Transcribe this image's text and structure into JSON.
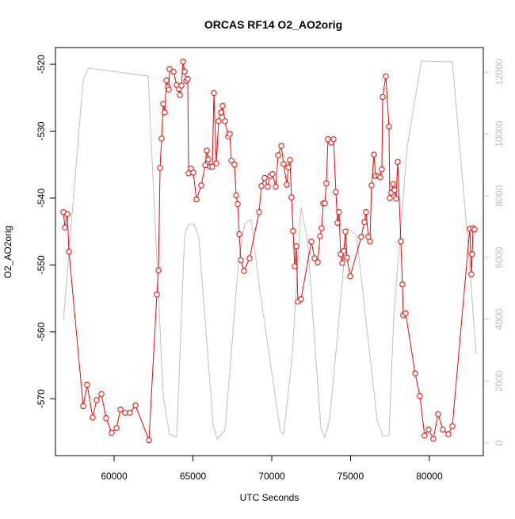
{
  "chart_data": {
    "type": "line",
    "title": "ORCAS RF14 O2_AO2orig",
    "x_label": "UTC Seconds",
    "y_label": "O2_AO2orig",
    "xlim": [
      56280,
      83420
    ],
    "xticks": [
      60000,
      65000,
      70000,
      75000,
      80000
    ],
    "ylim": [
      -578.5,
      -517.5
    ],
    "yticks": [
      -570,
      -560,
      -550,
      -540,
      -530,
      -520
    ],
    "y2lim": [
      -410,
      12795
    ],
    "y2ticks": [
      0,
      2000,
      4000,
      6000,
      8000,
      10000,
      12000
    ],
    "series": [
      {
        "color": "#ff0000",
        "markers": true,
        "x": [
          56784,
          56884,
          57035,
          57136,
          58040,
          58291,
          58643,
          58894,
          59196,
          59497,
          59849,
          60151,
          60402,
          60704,
          61005,
          61357,
          62211,
          62714,
          62814,
          62915,
          63015,
          63116,
          63216,
          63317,
          63417,
          63467,
          63518,
          63769,
          63970,
          64121,
          64171,
          64271,
          64372,
          64472,
          64573,
          64673,
          64724,
          64874,
          65025,
          65226,
          65528,
          65779,
          65879,
          65980,
          66080,
          66231,
          66332,
          66482,
          66633,
          66784,
          66884,
          67035,
          67236,
          67337,
          67437,
          67638,
          67739,
          67839,
          67940,
          68040,
          68241,
          68593,
          69196,
          69347,
          69548,
          69749,
          69900,
          70050,
          70251,
          70402,
          70603,
          70754,
          70955,
          71055,
          71156,
          71256,
          71357,
          71457,
          71558,
          71658,
          71859,
          72513,
          72714,
          72915,
          73065,
          73166,
          73266,
          73367,
          73467,
          73568,
          73769,
          73920,
          74070,
          74171,
          74271,
          74372,
          74472,
          74573,
          74673,
          74774,
          74975,
          75678,
          75879,
          75980,
          76131,
          76231,
          76332,
          76482,
          76583,
          76784,
          76884,
          76985,
          77035,
          77236,
          77437,
          77487,
          77588,
          77688,
          77789,
          77889,
          77990,
          78191,
          78291,
          78342,
          78492,
          79095,
          79397,
          79698,
          79950,
          80251,
          80553,
          80854,
          81206,
          81457,
          82563,
          82663,
          82714,
          82764,
          82864
        ],
        "values": [
          -542.1,
          -544.4,
          -542.4,
          -548.0,
          -571.1,
          -567.9,
          -572.8,
          -570.2,
          -569.3,
          -572.9,
          -575.1,
          -574.4,
          -571.6,
          -572.1,
          -572.1,
          -571.0,
          -576.2,
          -554.4,
          -550.8,
          -535.5,
          -531.1,
          -525.9,
          -527.2,
          -522.4,
          -523.4,
          -523.8,
          -520.7,
          -521.1,
          -523.1,
          -523.7,
          -524.6,
          -523.2,
          -519.6,
          -521.1,
          -522.5,
          -522.2,
          -536.3,
          -535.6,
          -536.2,
          -540.2,
          -538.1,
          -535.1,
          -532.9,
          -534.2,
          -535.3,
          -535.3,
          -524.3,
          -534.8,
          -528.5,
          -527.2,
          -526.2,
          -528.5,
          -530.8,
          -530.4,
          -534.4,
          -535.0,
          -539.6,
          -540.9,
          -545.4,
          -549.3,
          -550.9,
          -549.0,
          -542.1,
          -538.2,
          -537.0,
          -538.3,
          -536.7,
          -536.4,
          -538.3,
          -533.6,
          -532.2,
          -534.9,
          -538.0,
          -535.4,
          -534.3,
          -539.9,
          -544.9,
          -550.2,
          -547.2,
          -555.5,
          -555.1,
          -546.5,
          -549.0,
          -549.6,
          -545.7,
          -544.5,
          -540.8,
          -540.8,
          -537.8,
          -531.2,
          -531.7,
          -531.2,
          -539.1,
          -543.7,
          -542.1,
          -548.4,
          -549.7,
          -547.9,
          -545.0,
          -548.9,
          -551.7,
          -545.8,
          -543.6,
          -542.1,
          -545.8,
          -546.5,
          -538.1,
          -533.5,
          -536.7,
          -536.7,
          -536.9,
          -535.7,
          -524.9,
          -521.8,
          -529.3,
          -540.0,
          -539.2,
          -537.9,
          -538.8,
          -540.1,
          -534.6,
          -546.5,
          -552.9,
          -557.5,
          -557.2,
          -566.2,
          -569.6,
          -575.5,
          -574.6,
          -576.0,
          -572.3,
          -574.6,
          -575.3,
          -574.1,
          -544.6,
          -551.4,
          -548.4,
          -544.5,
          -544.7
        ]
      },
      {
        "color": "#bebebe",
        "axis": "y2",
        "markers": false,
        "x": [
          56784,
          58040,
          58392,
          62161,
          63116,
          63518,
          63970,
          64472,
          64724,
          65075,
          65377,
          66281,
          66533,
          67035,
          67387,
          67889,
          68291,
          68693,
          69246,
          70553,
          70754,
          71307,
          71859,
          72261,
          73116,
          73367,
          73668,
          74221,
          74774,
          75377,
          76683,
          77035,
          77437,
          77739,
          78593,
          79497,
          81457,
          82412,
          82965
        ],
        "values": [
          3974,
          11769,
          12128,
          11872,
          1513,
          282,
          179,
          6718,
          7077,
          7077,
          6641,
          590,
          128,
          410,
          2615,
          5846,
          7103,
          7231,
          4923,
          359,
          282,
          2846,
          7615,
          6590,
          487,
          179,
          744,
          3744,
          6974,
          6718,
          744,
          231,
          231,
          4077,
          9590,
          12359,
          12333,
          6692,
          2872
        ]
      }
    ]
  }
}
